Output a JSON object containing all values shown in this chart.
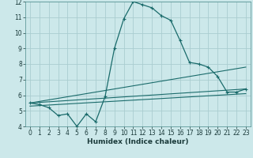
{
  "xlabel": "Humidex (Indice chaleur)",
  "bg_color": "#cce8ea",
  "grid_color": "#aacdd0",
  "line_color": "#1a6b6b",
  "xlim": [
    -0.5,
    23.5
  ],
  "ylim": [
    4,
    12
  ],
  "xticks": [
    0,
    1,
    2,
    3,
    4,
    5,
    6,
    7,
    8,
    9,
    10,
    11,
    12,
    13,
    14,
    15,
    16,
    17,
    18,
    19,
    20,
    21,
    22,
    23
  ],
  "yticks": [
    4,
    5,
    6,
    7,
    8,
    9,
    10,
    11,
    12
  ],
  "curve1_x": [
    0,
    1,
    2,
    3,
    4,
    5,
    6,
    7,
    8,
    9,
    10,
    11,
    12,
    13,
    14,
    15,
    16,
    17,
    18,
    19,
    20,
    21,
    22,
    23
  ],
  "curve1_y": [
    5.5,
    5.4,
    5.2,
    4.7,
    4.8,
    4.0,
    4.8,
    4.3,
    5.9,
    9.0,
    10.9,
    12.0,
    11.8,
    11.6,
    11.1,
    10.8,
    9.5,
    8.1,
    8.0,
    7.8,
    7.2,
    6.2,
    6.2,
    6.4
  ],
  "curve2_x": [
    0,
    23
  ],
  "curve2_y": [
    5.5,
    7.8
  ],
  "curve3_x": [
    0,
    23
  ],
  "curve3_y": [
    5.5,
    6.4
  ],
  "curve4_x": [
    0,
    23
  ],
  "curve4_y": [
    5.3,
    6.1
  ],
  "xlabel_fontsize": 6.5,
  "tick_fontsize": 5.5
}
